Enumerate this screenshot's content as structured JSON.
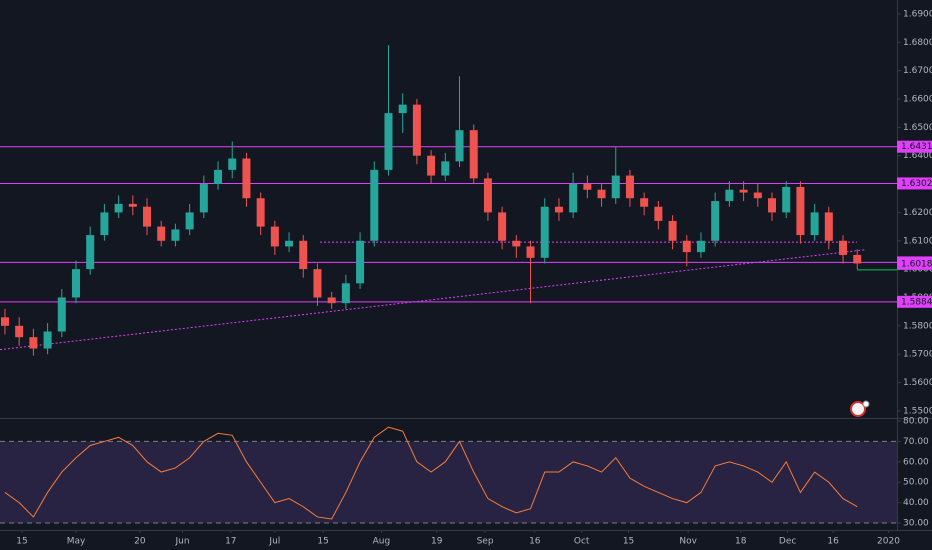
{
  "chart_data": {
    "type": "candlestick",
    "up_color": "#26a69a",
    "down_color": "#ef5350",
    "xlim": [
      -0.35,
      62.8
    ],
    "xticks": [
      {
        "value": 1.2,
        "label": "15"
      },
      {
        "value": 5.0,
        "label": "May"
      },
      {
        "value": 9.5,
        "label": "20"
      },
      {
        "value": 12.5,
        "label": "Jun"
      },
      {
        "value": 15.9,
        "label": "17"
      },
      {
        "value": 19.0,
        "label": "Jul"
      },
      {
        "value": 22.4,
        "label": "15"
      },
      {
        "value": 26.5,
        "label": "Aug"
      },
      {
        "value": 30.4,
        "label": "19"
      },
      {
        "value": 33.8,
        "label": "Sep"
      },
      {
        "value": 37.3,
        "label": "16"
      },
      {
        "value": 40.6,
        "label": "Oct"
      },
      {
        "value": 43.9,
        "label": "15"
      },
      {
        "value": 48.1,
        "label": "Nov"
      },
      {
        "value": 51.8,
        "label": "18"
      },
      {
        "value": 55.1,
        "label": "Dec"
      },
      {
        "value": 58.3,
        "label": "16"
      },
      {
        "value": 62.2,
        "label": "2020"
      }
    ],
    "ylim": [
      1.5475,
      1.6949
    ],
    "yticks": [
      {
        "value": 1.55,
        "label": "1.55000"
      },
      {
        "value": 1.56,
        "label": "1.56000"
      },
      {
        "value": 1.57,
        "label": "1.57000"
      },
      {
        "value": 1.58,
        "label": "1.58000"
      },
      {
        "value": 1.59,
        "label": "1.59000"
      },
      {
        "value": 1.6,
        "label": "1.60000"
      },
      {
        "value": 1.61,
        "label": "1.61000"
      },
      {
        "value": 1.62,
        "label": "1.62000"
      },
      {
        "value": 1.63,
        "label": "1.63000"
      },
      {
        "value": 1.64,
        "label": "1.64000"
      },
      {
        "value": 1.65,
        "label": "1.65000"
      },
      {
        "value": 1.66,
        "label": "1.66000"
      },
      {
        "value": 1.67,
        "label": "1.67000"
      },
      {
        "value": 1.68,
        "label": "1.68000"
      },
      {
        "value": 1.69,
        "label": "1.69000"
      }
    ],
    "open": [
      1.583,
      1.58,
      1.576,
      1.572,
      1.578,
      1.59,
      1.6,
      1.612,
      1.62,
      1.623,
      1.622,
      1.615,
      1.61,
      1.614,
      1.62,
      1.63,
      1.635,
      1.639,
      1.625,
      1.615,
      1.608,
      1.61,
      1.6,
      1.59,
      1.588,
      1.595,
      1.61,
      1.635,
      1.655,
      1.658,
      1.64,
      1.633,
      1.638,
      1.649,
      1.632,
      1.62,
      1.61,
      1.608,
      1.604,
      1.622,
      1.62,
      1.63,
      1.628,
      1.625,
      1.633,
      1.625,
      1.622,
      1.617,
      1.61,
      1.606,
      1.61,
      1.624,
      1.628,
      1.627,
      1.625,
      1.62,
      1.629,
      1.612,
      1.62,
      1.61,
      1.605
    ],
    "high": [
      1.586,
      1.583,
      1.579,
      1.581,
      1.593,
      1.603,
      1.615,
      1.623,
      1.626,
      1.626,
      1.625,
      1.617,
      1.616,
      1.623,
      1.633,
      1.638,
      1.645,
      1.641,
      1.627,
      1.617,
      1.613,
      1.612,
      1.602,
      1.592,
      1.598,
      1.613,
      1.638,
      1.679,
      1.662,
      1.66,
      1.642,
      1.641,
      1.668,
      1.651,
      1.634,
      1.622,
      1.612,
      1.61,
      1.625,
      1.625,
      1.634,
      1.633,
      1.63,
      1.643,
      1.635,
      1.627,
      1.624,
      1.619,
      1.612,
      1.613,
      1.627,
      1.631,
      1.631,
      1.63,
      1.627,
      1.631,
      1.631,
      1.623,
      1.622,
      1.612,
      1.607
    ],
    "low": [
      1.577,
      1.573,
      1.5695,
      1.57,
      1.576,
      1.588,
      1.598,
      1.61,
      1.618,
      1.619,
      1.612,
      1.608,
      1.608,
      1.612,
      1.618,
      1.628,
      1.632,
      1.622,
      1.612,
      1.605,
      1.606,
      1.597,
      1.587,
      1.586,
      1.586,
      1.593,
      1.608,
      1.633,
      1.648,
      1.637,
      1.63,
      1.631,
      1.636,
      1.63,
      1.617,
      1.607,
      1.604,
      1.588,
      1.602,
      1.617,
      1.618,
      1.625,
      1.622,
      1.623,
      1.622,
      1.619,
      1.614,
      1.607,
      1.601,
      1.604,
      1.608,
      1.622,
      1.624,
      1.622,
      1.617,
      1.618,
      1.609,
      1.61,
      1.607,
      1.602,
      1.6
    ],
    "close": [
      1.58,
      1.576,
      1.572,
      1.578,
      1.59,
      1.6,
      1.612,
      1.62,
      1.623,
      1.622,
      1.615,
      1.61,
      1.614,
      1.62,
      1.63,
      1.635,
      1.639,
      1.625,
      1.615,
      1.608,
      1.61,
      1.6,
      1.59,
      1.588,
      1.595,
      1.61,
      1.635,
      1.655,
      1.658,
      1.64,
      1.633,
      1.638,
      1.649,
      1.632,
      1.62,
      1.61,
      1.608,
      1.604,
      1.622,
      1.62,
      1.63,
      1.628,
      1.625,
      1.633,
      1.625,
      1.622,
      1.617,
      1.61,
      1.606,
      1.61,
      1.624,
      1.628,
      1.627,
      1.625,
      1.62,
      1.629,
      1.612,
      1.62,
      1.61,
      1.605,
      1.602
    ],
    "levels": [
      1.64317,
      1.63021,
      1.60236,
      1.58847
    ],
    "level_color": "#e040fb",
    "last_price": 1.60185,
    "last_price_color": "#00c853",
    "dotted_level": 1.6095,
    "trendline": {
      "x": [
        -0.35,
        60.5
      ],
      "y": [
        1.5716,
        1.6068
      ]
    },
    "rsi": {
      "color": "#f57c38",
      "ylim": [
        26.6,
        80.5
      ],
      "yticks": [
        {
          "value": 30,
          "label": "30.00"
        },
        {
          "value": 40,
          "label": "40.00"
        },
        {
          "value": 50,
          "label": "50.00"
        },
        {
          "value": 60,
          "label": "60.00"
        },
        {
          "value": 70,
          "label": "70.00"
        },
        {
          "value": 80,
          "label": "80.00"
        }
      ],
      "band": [
        30,
        70
      ],
      "values": [
        45,
        40,
        33,
        45,
        55,
        62,
        68,
        70,
        72,
        68,
        60,
        55,
        57,
        62,
        70,
        74,
        73,
        60,
        50,
        40,
        42,
        38,
        33,
        32,
        45,
        60,
        72,
        77,
        75,
        60,
        55,
        60,
        70,
        55,
        42,
        38,
        35,
        37,
        55,
        55,
        60,
        58,
        55,
        62,
        52,
        48,
        45,
        42,
        40,
        45,
        58,
        60,
        58,
        55,
        50,
        60,
        45,
        55,
        50,
        42,
        38
      ]
    }
  }
}
